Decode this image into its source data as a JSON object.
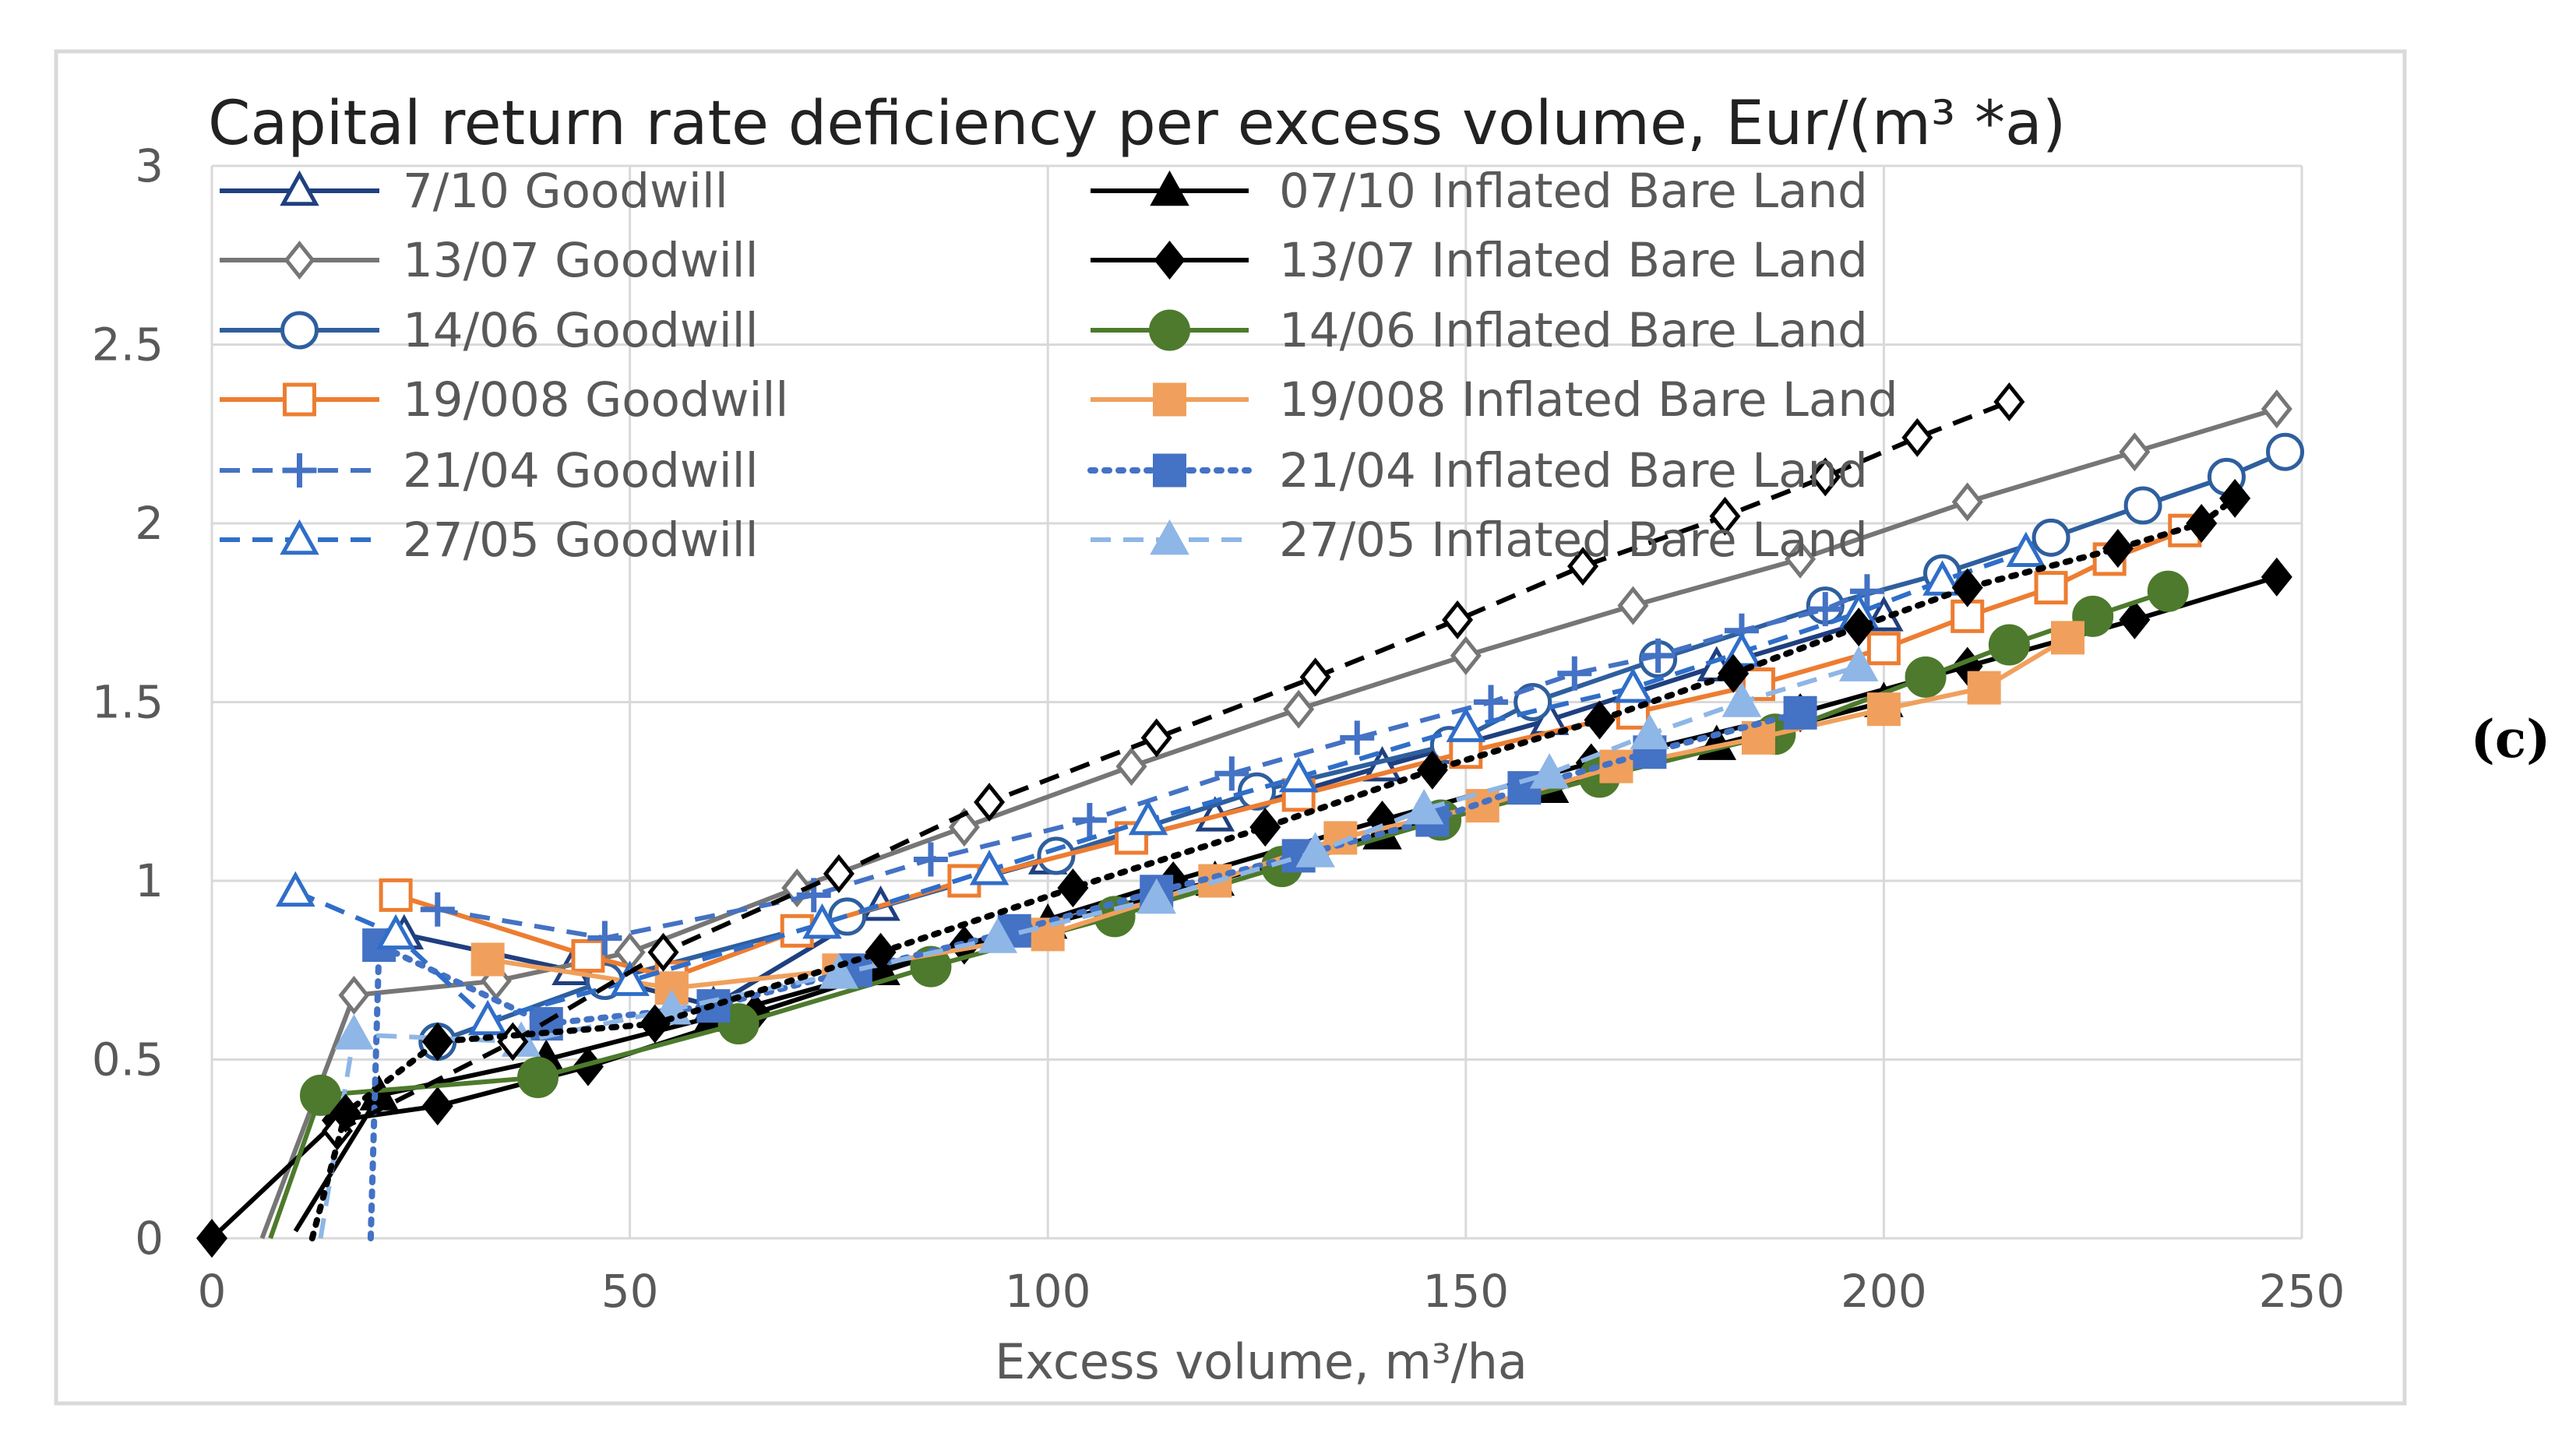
{
  "panel_label": "(c)",
  "chart_data": {
    "type": "line",
    "title": "Capital return rate deficiency per excess volume, Eur/(m³ *a)",
    "xlabel": "Excess volume, m³/ha",
    "ylabel": "",
    "xlim": [
      0,
      250
    ],
    "ylim": [
      0,
      3
    ],
    "x_ticks": [
      "0",
      "50",
      "100",
      "150",
      "200",
      "250"
    ],
    "y_ticks": [
      "0",
      "0.5",
      "1",
      "1.5",
      "2",
      "2.5",
      "3"
    ],
    "grid": true,
    "legend_position": "top-left, two columns inside plot",
    "series": [
      {
        "name": "7/10 Goodwill",
        "color": "#1f3f7f",
        "dash": "solid",
        "marker": "triangle",
        "marker_fill": "none",
        "x": [
          23,
          43,
          60,
          80,
          100,
          120,
          140,
          160,
          180,
          200
        ],
        "y": [
          0.85,
          0.75,
          0.65,
          0.93,
          1.06,
          1.18,
          1.32,
          1.45,
          1.6,
          1.74
        ]
      },
      {
        "name": "07/10 Inflated Bare Land",
        "color": "#000000",
        "dash": "solid",
        "marker": "triangle",
        "marker_fill": "#000000",
        "x": [
          10,
          20,
          40,
          60,
          80,
          100,
          120,
          140,
          160,
          180,
          200
        ],
        "y": [
          0.02,
          0.4,
          0.5,
          0.62,
          0.75,
          0.88,
          1.0,
          1.13,
          1.26,
          1.38,
          1.5
        ]
      },
      {
        "name": "13/07 Goodwill",
        "color": "#767676",
        "dash": "solid",
        "marker": "diamond",
        "marker_fill": "none",
        "x": [
          6,
          17,
          34,
          50,
          70,
          90,
          110,
          130,
          150,
          170,
          190,
          210,
          230,
          247
        ],
        "y": [
          0.0,
          0.68,
          0.72,
          0.8,
          0.98,
          1.15,
          1.32,
          1.48,
          1.63,
          1.77,
          1.9,
          2.06,
          2.2,
          2.32
        ]
      },
      {
        "name": "13/07 Inflated Bare Land",
        "color": "#000000",
        "dash": "solid",
        "marker": "diamond",
        "marker_fill": "#000000",
        "x": [
          0,
          15,
          27,
          45,
          65,
          90,
          115,
          140,
          165,
          190,
          210,
          230,
          247
        ],
        "y": [
          0.0,
          0.33,
          0.37,
          0.48,
          0.63,
          0.82,
          1.0,
          1.17,
          1.33,
          1.47,
          1.6,
          1.73,
          1.85
        ]
      },
      {
        "name": "14/06 Goodwill",
        "color": "#2e5f9e",
        "dash": "solid",
        "marker": "circle",
        "marker_fill": "none",
        "x": [
          27,
          47,
          76,
          101,
          125,
          148,
          158,
          173,
          193,
          207,
          220,
          231,
          241,
          248
        ],
        "y": [
          0.55,
          0.72,
          0.9,
          1.07,
          1.25,
          1.38,
          1.5,
          1.62,
          1.77,
          1.86,
          1.96,
          2.05,
          2.13,
          2.2
        ]
      },
      {
        "name": "14/06 Inflated Bare Land",
        "color": "#4d7a2c",
        "dash": "solid",
        "marker": "circle",
        "marker_fill": "#4d7a2c",
        "x": [
          7,
          13,
          39,
          63,
          86,
          108,
          128,
          147,
          166,
          187,
          205,
          215,
          225,
          234
        ],
        "y": [
          0.0,
          0.4,
          0.45,
          0.6,
          0.76,
          0.9,
          1.04,
          1.17,
          1.29,
          1.41,
          1.57,
          1.66,
          1.74,
          1.81
        ]
      },
      {
        "name": "19/008 Goodwill",
        "color": "#ed7d31",
        "dash": "solid",
        "marker": "square",
        "marker_fill": "none",
        "x": [
          22,
          45,
          55,
          70,
          90,
          110,
          130,
          150,
          170,
          185,
          200,
          210,
          220,
          227,
          236
        ],
        "y": [
          0.96,
          0.79,
          0.73,
          0.86,
          1.0,
          1.12,
          1.24,
          1.36,
          1.47,
          1.55,
          1.65,
          1.74,
          1.82,
          1.9,
          1.98
        ]
      },
      {
        "name": "19/008 Inflated Bare Land",
        "color": "#f0a05c",
        "dash": "solid",
        "marker": "square",
        "marker_fill": "#f0a05c",
        "x": [
          33,
          55,
          75,
          100,
          120,
          135,
          152,
          168,
          185,
          200,
          212,
          222
        ],
        "y": [
          0.78,
          0.7,
          0.75,
          0.85,
          1.0,
          1.12,
          1.21,
          1.32,
          1.4,
          1.48,
          1.54,
          1.68
        ]
      },
      {
        "name": "21/04 Goodwill",
        "color": "#4472c4",
        "dash": "dashed",
        "marker": "plus",
        "marker_fill": "none",
        "x": [
          27,
          47,
          72,
          86,
          105,
          122,
          137,
          153,
          163,
          173,
          183,
          193,
          198
        ],
        "y": [
          0.92,
          0.84,
          0.96,
          1.06,
          1.17,
          1.3,
          1.4,
          1.5,
          1.58,
          1.63,
          1.7,
          1.76,
          1.81
        ]
      },
      {
        "name": "21/04 Inflated Bare Land",
        "color": "#4472c4",
        "dash": "dotted",
        "marker": "square",
        "marker_fill": "#4472c4",
        "x": [
          19,
          20,
          40,
          60,
          77,
          96,
          113,
          130,
          146,
          157,
          172,
          190
        ],
        "y": [
          0.0,
          0.82,
          0.6,
          0.65,
          0.75,
          0.86,
          0.97,
          1.07,
          1.17,
          1.26,
          1.36,
          1.47
        ]
      },
      {
        "name": "27/05 Goodwill",
        "color": "#2f6ec9",
        "dash": "dashed",
        "marker": "triangle",
        "marker_fill": "none",
        "x": [
          10,
          22,
          33,
          50,
          73,
          93,
          112,
          130,
          150,
          170,
          183,
          197,
          207,
          217
        ],
        "y": [
          0.97,
          0.85,
          0.61,
          0.72,
          0.88,
          1.03,
          1.17,
          1.29,
          1.43,
          1.54,
          1.64,
          1.75,
          1.84,
          1.92
        ]
      },
      {
        "name": "27/05 Inflated Bare Land",
        "color": "#8eb6e6",
        "dash": "dashed",
        "marker": "triangle",
        "marker_fill": "#8eb6e6",
        "x": [
          13,
          17,
          37,
          55,
          75,
          94,
          113,
          132,
          145,
          160,
          172,
          183,
          197
        ],
        "y": [
          0.0,
          0.57,
          0.55,
          0.64,
          0.74,
          0.84,
          0.95,
          1.08,
          1.2,
          1.3,
          1.41,
          1.5,
          1.6
        ]
      },
      {
        "name": "",
        "color": "#000000",
        "dash": "dashed",
        "marker": "diamond",
        "marker_fill": "none",
        "x": [
          15,
          36,
          54,
          75,
          93,
          113,
          132,
          149,
          164,
          181,
          193,
          204,
          215
        ],
        "y": [
          0.3,
          0.55,
          0.8,
          1.02,
          1.22,
          1.4,
          1.57,
          1.73,
          1.88,
          2.02,
          2.13,
          2.24,
          2.34
        ]
      },
      {
        "name": "",
        "color": "#000000",
        "dash": "dotted",
        "marker": "diamond",
        "marker_fill": "#000000",
        "x": [
          12,
          16,
          27,
          53,
          80,
          103,
          126,
          146,
          166,
          182,
          197,
          210,
          228,
          238,
          242
        ],
        "y": [
          0.0,
          0.35,
          0.55,
          0.6,
          0.8,
          0.98,
          1.15,
          1.31,
          1.45,
          1.58,
          1.71,
          1.82,
          1.93,
          2.0,
          2.07
        ]
      }
    ]
  }
}
